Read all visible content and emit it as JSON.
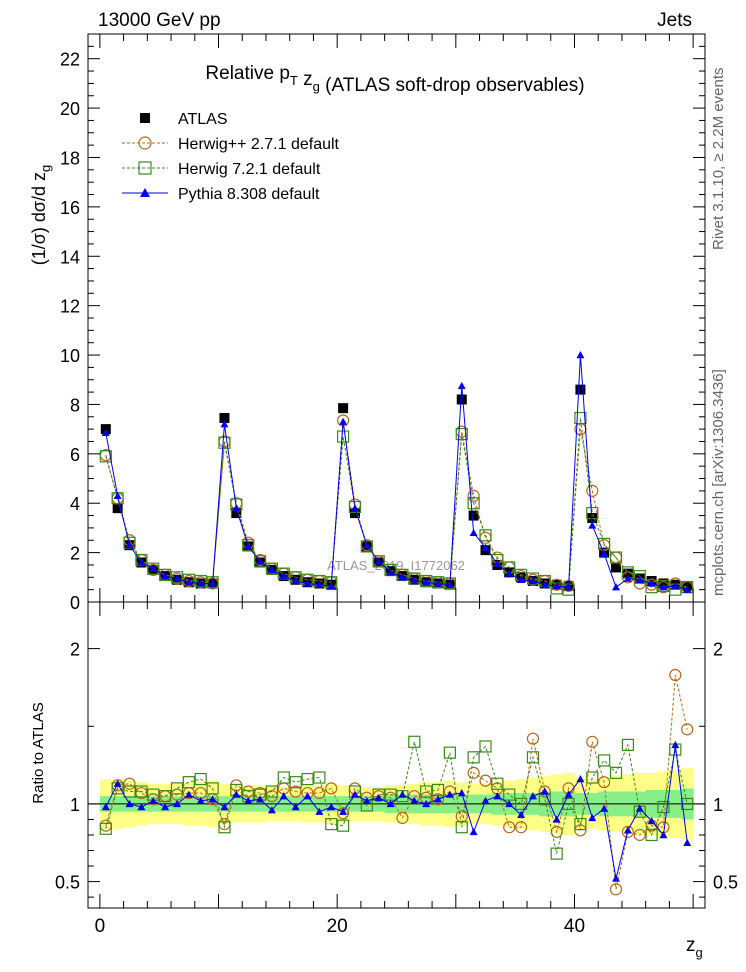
{
  "header": {
    "left": "13000 GeV pp",
    "right": "Jets"
  },
  "title": "Relative p_T z_g (ATLAS soft-drop observables)",
  "side_labels": {
    "rivet": "Rivet 3.1.10, ≥ 2.2M events",
    "mcplots": "mcplots.cern.ch [arXiv:1306.3436]"
  },
  "watermark": "ATLAS_2019_I1772062",
  "chart_data": [
    {
      "type": "scatter",
      "panel": "main",
      "title": "Relative p_T z_g (ATLAS soft-drop observables)",
      "ylabel": "(1/σ) dσ/d z_g",
      "xlabel": "",
      "xlim": [
        -1,
        51
      ],
      "ylim": [
        0,
        23
      ],
      "yticks": [
        0,
        2,
        4,
        6,
        8,
        10,
        12,
        14,
        16,
        18,
        20,
        22
      ],
      "legend_placement": "top-left",
      "x": [
        0.5,
        1.5,
        2.5,
        3.5,
        4.5,
        5.5,
        6.5,
        7.5,
        8.5,
        9.5,
        10.5,
        11.5,
        12.5,
        13.5,
        14.5,
        15.5,
        16.5,
        17.5,
        18.5,
        19.5,
        20.5,
        21.5,
        22.5,
        23.5,
        24.5,
        25.5,
        26.5,
        27.5,
        28.5,
        29.5,
        30.5,
        31.5,
        32.5,
        33.5,
        34.5,
        35.5,
        36.5,
        37.5,
        38.5,
        39.5,
        40.5,
        41.5,
        42.5,
        43.5,
        44.5,
        45.5,
        46.5,
        47.5,
        48.5,
        49.5
      ],
      "series": [
        {
          "name": "ATLAS",
          "color": "#000000",
          "marker": "square",
          "values": [
            7.0,
            3.8,
            2.3,
            1.6,
            1.3,
            1.05,
            0.9,
            0.8,
            0.75,
            0.75,
            7.45,
            3.6,
            2.25,
            1.6,
            1.3,
            1.05,
            0.9,
            0.8,
            0.75,
            0.7,
            7.85,
            3.6,
            2.25,
            1.6,
            1.25,
            1.05,
            0.9,
            0.8,
            0.75,
            0.7,
            8.2,
            3.5,
            2.1,
            1.5,
            1.2,
            1.0,
            0.85,
            0.75,
            0.7,
            0.65,
            8.6,
            3.4,
            2.0,
            1.4,
            1.15,
            0.95,
            0.85,
            0.75,
            0.7,
            0.65
          ]
        },
        {
          "name": "Herwig++ 2.7.1 default",
          "color": "#b8661c",
          "marker": "circle",
          "values": [
            5.95,
            4.2,
            2.5,
            1.7,
            1.3,
            1.1,
            0.95,
            0.85,
            0.8,
            0.75,
            6.5,
            4.0,
            2.4,
            1.7,
            1.35,
            1.15,
            1.0,
            0.9,
            0.85,
            0.8,
            7.35,
            3.95,
            2.3,
            1.65,
            1.3,
            1.1,
            0.95,
            0.85,
            0.8,
            0.75,
            6.9,
            4.3,
            2.6,
            1.8,
            1.4,
            1.05,
            0.9,
            0.85,
            0.7,
            0.65,
            7.0,
            4.5,
            2.3,
            1.8,
            1.0,
            0.75,
            0.7,
            0.6,
            0.75,
            0.6
          ]
        },
        {
          "name": "Herwig 7.2.1 default",
          "color": "#3a8a1a",
          "marker": "square-open",
          "values": [
            5.9,
            4.2,
            2.4,
            1.7,
            1.35,
            1.1,
            1.0,
            0.9,
            0.85,
            0.8,
            6.45,
            3.95,
            2.3,
            1.65,
            1.35,
            1.15,
            1.0,
            0.9,
            0.85,
            0.8,
            6.7,
            3.85,
            2.25,
            1.65,
            1.3,
            1.1,
            0.95,
            0.85,
            0.8,
            0.75,
            6.8,
            4.0,
            2.7,
            1.7,
            1.4,
            1.1,
            0.95,
            0.85,
            0.55,
            0.5,
            7.45,
            3.6,
            2.35,
            1.8,
            1.2,
            1.05,
            0.6,
            0.65,
            0.5,
            0.6
          ]
        },
        {
          "name": "Pythia 8.308 default",
          "color": "#0000ee",
          "marker": "triangle",
          "values": [
            6.85,
            4.3,
            2.3,
            1.6,
            1.35,
            1.05,
            0.95,
            0.8,
            0.75,
            0.75,
            7.2,
            3.8,
            2.25,
            1.65,
            1.3,
            1.05,
            0.85,
            0.75,
            0.7,
            0.65,
            7.3,
            3.8,
            2.3,
            1.65,
            1.2,
            1.0,
            0.85,
            0.8,
            0.75,
            0.7,
            8.75,
            2.8,
            2.2,
            1.55,
            1.15,
            0.9,
            0.85,
            0.7,
            0.65,
            0.6,
            10.0,
            3.1,
            1.95,
            0.6,
            0.95,
            0.9,
            0.75,
            0.6,
            0.65,
            0.5
          ]
        }
      ]
    },
    {
      "type": "scatter",
      "panel": "ratio",
      "ylabel": "Ratio to ATLAS",
      "xlabel": "z_g",
      "xlim": [
        -1,
        51
      ],
      "ylim": [
        0.33,
        2.3
      ],
      "yticks": [
        0.5,
        1,
        2
      ],
      "xticks": [
        0,
        20,
        40
      ],
      "band_inner_halfwidth": [
        0.05,
        0.05,
        0.05,
        0.05,
        0.05,
        0.05,
        0.05,
        0.05,
        0.05,
        0.05,
        0.05,
        0.05,
        0.05,
        0.05,
        0.05,
        0.05,
        0.05,
        0.05,
        0.05,
        0.05,
        0.05,
        0.05,
        0.05,
        0.05,
        0.06,
        0.06,
        0.06,
        0.06,
        0.06,
        0.06,
        0.06,
        0.06,
        0.06,
        0.07,
        0.07,
        0.07,
        0.07,
        0.08,
        0.08,
        0.08,
        0.07,
        0.07,
        0.08,
        0.08,
        0.08,
        0.08,
        0.09,
        0.09,
        0.09,
        0.1
      ],
      "band_outer_halfwidth": [
        0.16,
        0.16,
        0.15,
        0.14,
        0.13,
        0.13,
        0.13,
        0.14,
        0.14,
        0.15,
        0.13,
        0.12,
        0.12,
        0.12,
        0.11,
        0.11,
        0.11,
        0.12,
        0.12,
        0.13,
        0.12,
        0.11,
        0.11,
        0.11,
        0.12,
        0.12,
        0.13,
        0.14,
        0.14,
        0.15,
        0.14,
        0.13,
        0.13,
        0.14,
        0.15,
        0.16,
        0.17,
        0.18,
        0.19,
        0.2,
        0.17,
        0.16,
        0.17,
        0.18,
        0.19,
        0.2,
        0.2,
        0.21,
        0.22,
        0.23
      ],
      "series": [
        {
          "name": "Herwig++ 2.7.1 default",
          "color": "#b8661c",
          "marker": "circle",
          "values": [
            0.86,
            1.12,
            1.13,
            1.07,
            1.03,
            1.05,
            1.06,
            1.07,
            1.07,
            1.03,
            0.87,
            1.12,
            1.08,
            1.07,
            1.05,
            1.1,
            1.08,
            1.07,
            1.07,
            1.1,
            0.94,
            1.1,
            1.04,
            1.05,
            1.04,
            0.91,
            1.05,
            1.04,
            1.03,
            1.08,
            0.92,
            1.2,
            1.15,
            1.1,
            0.85,
            0.85,
            1.42,
            1.08,
            0.82,
            1.1,
            0.83,
            1.4,
            1.14,
            0.45,
            0.82,
            0.8,
            0.86,
            0.85,
            1.83,
            1.48
          ]
        },
        {
          "name": "Herwig 7.2.1 default",
          "color": "#3a8a1a",
          "marker": "square-open",
          "values": [
            0.84,
            1.1,
            1.08,
            1.08,
            1.06,
            1.05,
            1.1,
            1.14,
            1.16,
            1.1,
            0.85,
            1.09,
            1.05,
            1.06,
            1.08,
            1.17,
            1.14,
            1.16,
            1.17,
            0.87,
            0.86,
            1.08,
            0.99,
            1.06,
            1.06,
            1.05,
            1.4,
            1.08,
            1.09,
            1.33,
            0.85,
            1.3,
            1.37,
            1.13,
            1.06,
            1.0,
            1.3,
            1.03,
            0.68,
            1.0,
            0.87,
            1.17,
            1.28,
            1.2,
            1.38,
            0.95,
            0.8,
            0.98,
            1.35,
            1.0
          ]
        },
        {
          "name": "Pythia 8.308 default",
          "color": "#0000ee",
          "marker": "triangle",
          "values": [
            0.98,
            1.13,
            1.0,
            0.98,
            1.02,
            0.98,
            1.0,
            1.06,
            1.02,
            1.03,
            0.98,
            1.06,
            1.02,
            1.03,
            0.96,
            1.05,
            0.98,
            1.05,
            0.95,
            0.98,
            0.95,
            1.06,
            1.02,
            1.04,
            1.0,
            1.06,
            1.02,
            1.0,
            1.03,
            1.06,
            1.07,
            0.82,
            1.02,
            1.05,
            1.0,
            0.93,
            1.05,
            1.08,
            0.9,
            1.06,
            1.16,
            0.91,
            0.97,
            0.52,
            0.83,
            0.97,
            0.89,
            0.8,
            1.38,
            0.75
          ]
        }
      ]
    }
  ]
}
